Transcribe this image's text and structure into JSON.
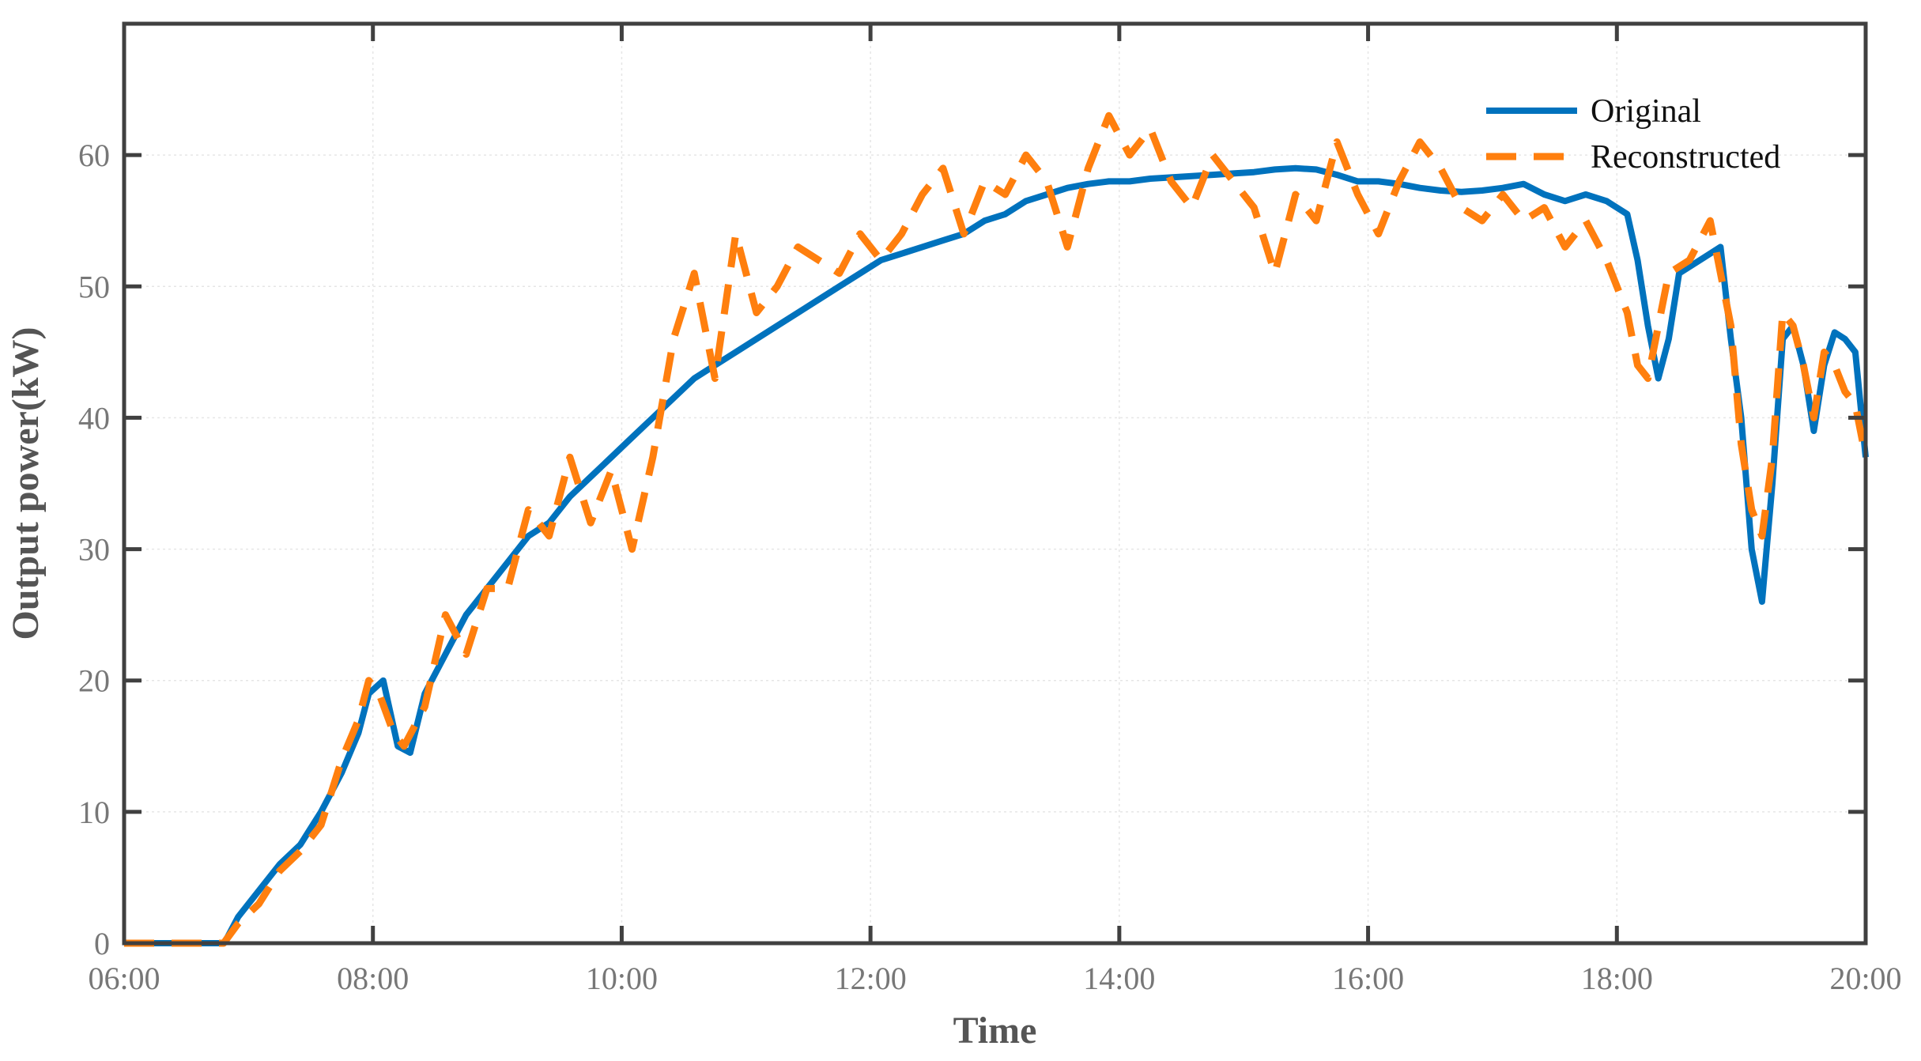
{
  "chart_data": {
    "type": "line",
    "xlabel": "Time",
    "ylabel": "Output power(kW)",
    "xlim": [
      "06:00",
      "20:00"
    ],
    "ylim": [
      0,
      70
    ],
    "x_ticks": [
      "06:00",
      "08:00",
      "10:00",
      "12:00",
      "14:00",
      "16:00",
      "18:00",
      "20:00"
    ],
    "y_ticks": [
      "0",
      "10",
      "20",
      "30",
      "40",
      "50",
      "60"
    ],
    "grid": true,
    "legend_position": "top-right",
    "colors": {
      "original": "#0072BD",
      "reconstructed": "#FF7F0E",
      "axes": "#404040",
      "grid": "#e6e6e6"
    },
    "series": [
      {
        "name": "Original",
        "style": "solid",
        "points": [
          [
            "06:00",
            0
          ],
          [
            "06:48",
            0
          ],
          [
            "06:50",
            0.5
          ],
          [
            "06:55",
            2
          ],
          [
            "07:05",
            4
          ],
          [
            "07:15",
            6
          ],
          [
            "07:25",
            7.5
          ],
          [
            "07:35",
            10
          ],
          [
            "07:45",
            13
          ],
          [
            "07:53",
            16
          ],
          [
            "07:58",
            19
          ],
          [
            "08:05",
            20
          ],
          [
            "08:12",
            15
          ],
          [
            "08:18",
            14.5
          ],
          [
            "08:25",
            19
          ],
          [
            "08:35",
            22
          ],
          [
            "08:45",
            25
          ],
          [
            "08:55",
            27
          ],
          [
            "09:05",
            29
          ],
          [
            "09:15",
            31
          ],
          [
            "09:25",
            32
          ],
          [
            "09:35",
            34
          ],
          [
            "09:45",
            35.5
          ],
          [
            "09:55",
            37
          ],
          [
            "10:05",
            38.5
          ],
          [
            "10:15",
            40
          ],
          [
            "10:25",
            41.5
          ],
          [
            "10:35",
            43
          ],
          [
            "10:45",
            44
          ],
          [
            "10:55",
            45
          ],
          [
            "11:05",
            46
          ],
          [
            "11:15",
            47
          ],
          [
            "11:25",
            48
          ],
          [
            "11:35",
            49
          ],
          [
            "11:45",
            50
          ],
          [
            "11:55",
            51
          ],
          [
            "12:05",
            52
          ],
          [
            "12:15",
            52.5
          ],
          [
            "12:25",
            53
          ],
          [
            "12:35",
            53.5
          ],
          [
            "12:45",
            54
          ],
          [
            "12:55",
            55
          ],
          [
            "13:05",
            55.5
          ],
          [
            "13:15",
            56.5
          ],
          [
            "13:25",
            57
          ],
          [
            "13:35",
            57.5
          ],
          [
            "13:45",
            57.8
          ],
          [
            "13:55",
            58
          ],
          [
            "14:05",
            58
          ],
          [
            "14:15",
            58.2
          ],
          [
            "14:25",
            58.3
          ],
          [
            "14:35",
            58.4
          ],
          [
            "14:45",
            58.5
          ],
          [
            "14:55",
            58.6
          ],
          [
            "15:05",
            58.7
          ],
          [
            "15:15",
            58.9
          ],
          [
            "15:25",
            59
          ],
          [
            "15:35",
            58.9
          ],
          [
            "15:45",
            58.5
          ],
          [
            "15:55",
            58
          ],
          [
            "16:05",
            58
          ],
          [
            "16:15",
            57.8
          ],
          [
            "16:25",
            57.5
          ],
          [
            "16:35",
            57.3
          ],
          [
            "16:45",
            57.2
          ],
          [
            "16:55",
            57.3
          ],
          [
            "17:05",
            57.5
          ],
          [
            "17:15",
            57.8
          ],
          [
            "17:25",
            57
          ],
          [
            "17:35",
            56.5
          ],
          [
            "17:45",
            57
          ],
          [
            "17:55",
            56.5
          ],
          [
            "18:05",
            55.5
          ],
          [
            "18:10",
            52
          ],
          [
            "18:15",
            47
          ],
          [
            "18:20",
            43
          ],
          [
            "18:25",
            46
          ],
          [
            "18:30",
            51
          ],
          [
            "18:40",
            52
          ],
          [
            "18:50",
            53
          ],
          [
            "18:55",
            46
          ],
          [
            "19:00",
            40
          ],
          [
            "19:05",
            30
          ],
          [
            "19:10",
            26
          ],
          [
            "19:15",
            35
          ],
          [
            "19:20",
            46
          ],
          [
            "19:25",
            47
          ],
          [
            "19:30",
            44
          ],
          [
            "19:35",
            39
          ],
          [
            "19:40",
            44
          ],
          [
            "19:45",
            46.5
          ],
          [
            "19:50",
            46
          ],
          [
            "19:55",
            45
          ],
          [
            "20:00",
            37
          ]
        ]
      },
      {
        "name": "Reconstructed",
        "style": "dashed",
        "points": [
          [
            "06:00",
            0
          ],
          [
            "06:48",
            0
          ],
          [
            "06:55",
            1.5
          ],
          [
            "07:05",
            3
          ],
          [
            "07:15",
            5.5
          ],
          [
            "07:25",
            7
          ],
          [
            "07:35",
            9
          ],
          [
            "07:45",
            14
          ],
          [
            "07:53",
            17
          ],
          [
            "07:58",
            20
          ],
          [
            "08:03",
            19
          ],
          [
            "08:10",
            16
          ],
          [
            "08:15",
            15
          ],
          [
            "08:25",
            18
          ],
          [
            "08:35",
            25
          ],
          [
            "08:45",
            22
          ],
          [
            "08:55",
            27
          ],
          [
            "09:05",
            27
          ],
          [
            "09:15",
            33
          ],
          [
            "09:25",
            31
          ],
          [
            "09:35",
            37
          ],
          [
            "09:45",
            32
          ],
          [
            "09:55",
            36
          ],
          [
            "10:05",
            30
          ],
          [
            "10:15",
            37
          ],
          [
            "10:25",
            46
          ],
          [
            "10:35",
            51
          ],
          [
            "10:45",
            43
          ],
          [
            "10:55",
            54
          ],
          [
            "11:05",
            48
          ],
          [
            "11:15",
            50
          ],
          [
            "11:25",
            53
          ],
          [
            "11:35",
            52
          ],
          [
            "11:45",
            51
          ],
          [
            "11:55",
            54
          ],
          [
            "12:05",
            52
          ],
          [
            "12:15",
            54
          ],
          [
            "12:25",
            57
          ],
          [
            "12:35",
            59
          ],
          [
            "12:45",
            54
          ],
          [
            "12:55",
            58
          ],
          [
            "13:05",
            57
          ],
          [
            "13:15",
            60
          ],
          [
            "13:25",
            58
          ],
          [
            "13:35",
            53
          ],
          [
            "13:45",
            59
          ],
          [
            "13:55",
            63
          ],
          [
            "14:05",
            60
          ],
          [
            "14:15",
            62
          ],
          [
            "14:25",
            58
          ],
          [
            "14:35",
            56
          ],
          [
            "14:45",
            60
          ],
          [
            "14:55",
            58
          ],
          [
            "15:05",
            56
          ],
          [
            "15:15",
            51
          ],
          [
            "15:25",
            57
          ],
          [
            "15:35",
            55
          ],
          [
            "15:45",
            61
          ],
          [
            "15:55",
            57
          ],
          [
            "16:05",
            54
          ],
          [
            "16:15",
            58
          ],
          [
            "16:25",
            61
          ],
          [
            "16:35",
            59
          ],
          [
            "16:45",
            56
          ],
          [
            "16:55",
            55
          ],
          [
            "17:05",
            57
          ],
          [
            "17:15",
            55
          ],
          [
            "17:25",
            56
          ],
          [
            "17:35",
            53
          ],
          [
            "17:45",
            55
          ],
          [
            "17:55",
            52
          ],
          [
            "18:05",
            48
          ],
          [
            "18:10",
            44
          ],
          [
            "18:15",
            43
          ],
          [
            "18:20",
            47
          ],
          [
            "18:25",
            51
          ],
          [
            "18:35",
            52
          ],
          [
            "18:45",
            55
          ],
          [
            "18:55",
            47
          ],
          [
            "19:00",
            38
          ],
          [
            "19:05",
            33
          ],
          [
            "19:10",
            31
          ],
          [
            "19:15",
            37
          ],
          [
            "19:20",
            48
          ],
          [
            "19:25",
            47
          ],
          [
            "19:30",
            44
          ],
          [
            "19:35",
            40
          ],
          [
            "19:40",
            45
          ],
          [
            "19:45",
            44
          ],
          [
            "19:50",
            42
          ],
          [
            "19:55",
            41
          ],
          [
            "20:00",
            37
          ]
        ]
      }
    ]
  }
}
